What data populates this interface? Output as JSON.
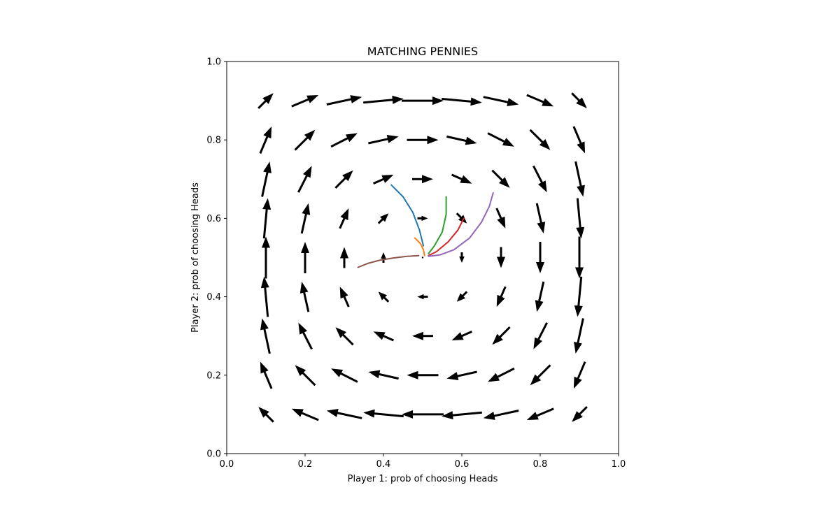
{
  "chart_data": {
    "type": "quiver",
    "title": "MATCHING PENNIES",
    "xlabel": "Player 1: prob of choosing Heads",
    "ylabel": "Player 2: prob of choosing Heads",
    "xlim": [
      0.0,
      1.0
    ],
    "ylim": [
      0.0,
      1.0
    ],
    "x_ticks": [
      "0.0",
      "0.2",
      "0.4",
      "0.6",
      "0.8",
      "1.0"
    ],
    "y_ticks": [
      "0.0",
      "0.2",
      "0.4",
      "0.6",
      "0.8",
      "1.0"
    ],
    "grid": false,
    "legend": "none",
    "vector_field": {
      "grid_x": [
        0.1,
        0.2,
        0.3,
        0.4,
        0.5,
        0.6,
        0.7,
        0.8,
        0.9
      ],
      "grid_y": [
        0.1,
        0.2,
        0.3,
        0.4,
        0.5,
        0.6,
        0.7,
        0.8,
        0.9
      ],
      "field": "u = x(1-x)(4y-2), v = y(1-y)(2-4x)",
      "color": "#000000"
    },
    "trajectories": [
      {
        "color": "#1f77b4",
        "points": [
          [
            0.42,
            0.685
          ],
          [
            0.45,
            0.655
          ],
          [
            0.475,
            0.615
          ],
          [
            0.492,
            0.57
          ],
          [
            0.502,
            0.53
          ]
        ]
      },
      {
        "color": "#ff7f0e",
        "points": [
          [
            0.48,
            0.55
          ],
          [
            0.495,
            0.535
          ],
          [
            0.502,
            0.52
          ],
          [
            0.505,
            0.505
          ]
        ]
      },
      {
        "color": "#2ca02c",
        "points": [
          [
            0.56,
            0.655
          ],
          [
            0.56,
            0.61
          ],
          [
            0.55,
            0.565
          ],
          [
            0.53,
            0.53
          ],
          [
            0.515,
            0.51
          ]
        ]
      },
      {
        "color": "#d62728",
        "points": [
          [
            0.605,
            0.6
          ],
          [
            0.59,
            0.57
          ],
          [
            0.565,
            0.54
          ],
          [
            0.535,
            0.515
          ],
          [
            0.515,
            0.505
          ]
        ]
      },
      {
        "color": "#9467bd",
        "points": [
          [
            0.68,
            0.665
          ],
          [
            0.67,
            0.63
          ],
          [
            0.65,
            0.59
          ],
          [
            0.62,
            0.55
          ],
          [
            0.58,
            0.52
          ],
          [
            0.545,
            0.507
          ],
          [
            0.515,
            0.503
          ]
        ]
      },
      {
        "color": "#8c564b",
        "points": [
          [
            0.335,
            0.475
          ],
          [
            0.36,
            0.485
          ],
          [
            0.39,
            0.493
          ],
          [
            0.425,
            0.499
          ],
          [
            0.46,
            0.503
          ],
          [
            0.49,
            0.505
          ]
        ]
      }
    ]
  }
}
